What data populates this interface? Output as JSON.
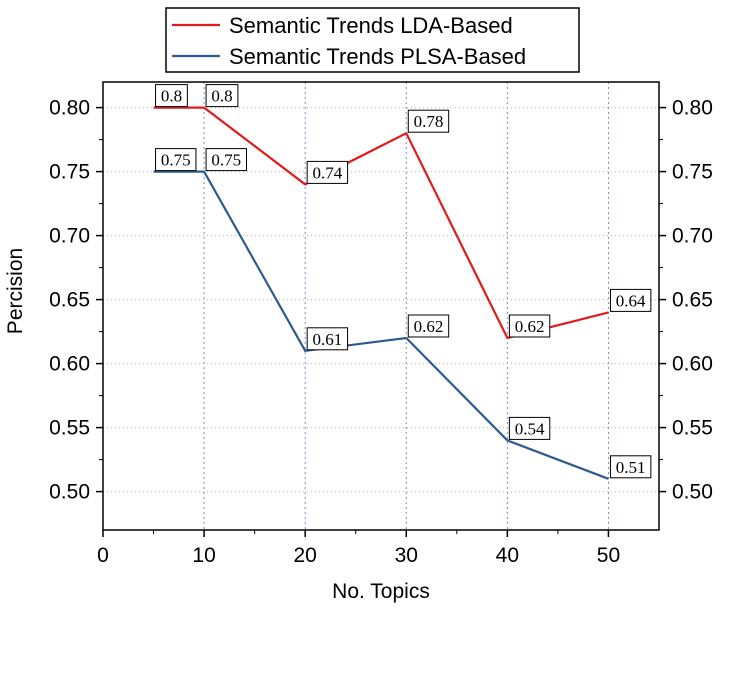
{
  "chart_data": {
    "type": "line",
    "xlabel": "No. Topics",
    "ylabel": "Percision",
    "xlim": [
      0,
      55
    ],
    "ylim": [
      0.47,
      0.82
    ],
    "x_ticks": [
      0,
      10,
      20,
      30,
      40,
      50
    ],
    "x_tick_labels": [
      "0",
      "10",
      "20",
      "30",
      "40",
      "50"
    ],
    "y_ticks": [
      0.5,
      0.55,
      0.6,
      0.65,
      0.7,
      0.75,
      0.8
    ],
    "y_tick_labels": [
      "0.50",
      "0.55",
      "0.60",
      "0.65",
      "0.70",
      "0.75",
      "0.80"
    ],
    "right_axis_duplicate": true,
    "grid": true,
    "legend_position": "top",
    "series": [
      {
        "name": "Semantic Trends LDA-Based",
        "color": "#e31a1c",
        "x": [
          5,
          10,
          20,
          30,
          40,
          50
        ],
        "values": [
          0.8,
          0.8,
          0.74,
          0.78,
          0.62,
          0.64
        ],
        "data_labels": [
          "0.8",
          "0.8",
          "0.74",
          "0.78",
          "0.62",
          "0.64"
        ]
      },
      {
        "name": "Semantic Trends PLSA-Based",
        "color": "#2d5a8e",
        "x": [
          5,
          10,
          20,
          30,
          40,
          50
        ],
        "values": [
          0.75,
          0.75,
          0.61,
          0.62,
          0.54,
          0.51
        ],
        "data_labels": [
          "0.75",
          "0.75",
          "0.61",
          "0.62",
          "0.54",
          "0.51"
        ]
      }
    ]
  }
}
